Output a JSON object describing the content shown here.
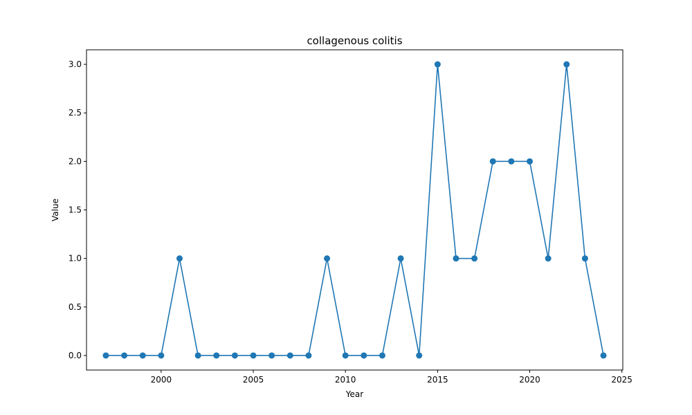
{
  "chart_data": {
    "type": "line",
    "title": "collagenous colitis",
    "xlabel": "Year",
    "ylabel": "Value",
    "xlim": [
      1995.95,
      2025.05
    ],
    "ylim": [
      -0.15,
      3.15
    ],
    "x_ticks": [
      2000,
      2005,
      2010,
      2015,
      2020,
      2025
    ],
    "y_ticks": [
      0.0,
      0.5,
      1.0,
      1.5,
      2.0,
      2.5,
      3.0
    ],
    "x_tick_labels": [
      "2000",
      "2005",
      "2010",
      "2015",
      "2020",
      "2025"
    ],
    "y_tick_labels": [
      "0.0",
      "0.5",
      "1.0",
      "1.5",
      "2.0",
      "2.5",
      "3.0"
    ],
    "grid": false,
    "series": [
      {
        "color": "#1f77b4",
        "marker": "circle",
        "x": [
          1997,
          1998,
          1999,
          2000,
          2001,
          2002,
          2003,
          2004,
          2005,
          2006,
          2007,
          2008,
          2009,
          2010,
          2011,
          2012,
          2013,
          2014,
          2015,
          2016,
          2017,
          2018,
          2019,
          2020,
          2021,
          2022,
          2023,
          2024
        ],
        "values": [
          0,
          0,
          0,
          0,
          1,
          0,
          0,
          0,
          0,
          0,
          0,
          0,
          1,
          0,
          0,
          0,
          1,
          0,
          3,
          1,
          1,
          2,
          2,
          2,
          1,
          3,
          1,
          0
        ]
      }
    ]
  }
}
